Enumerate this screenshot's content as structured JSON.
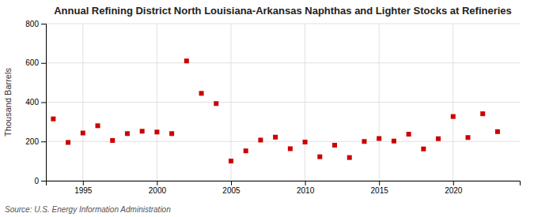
{
  "chart_data": {
    "type": "scatter",
    "title": "Annual Refining District North Louisiana-Arkansas Naphthas and Lighter Stocks at Refineries",
    "y_label": "Thousand Barrels",
    "annotations": [
      "Source: U.S. Energy Information Administration"
    ],
    "x": [
      1993,
      1994,
      1995,
      1996,
      1997,
      1998,
      1999,
      2000,
      2001,
      2002,
      2003,
      2004,
      2005,
      2006,
      2007,
      2008,
      2009,
      2010,
      2011,
      2012,
      2013,
      2014,
      2015,
      2016,
      2017,
      2018,
      2019,
      2020,
      2021,
      2022,
      2023
    ],
    "values": [
      315,
      195,
      243,
      280,
      205,
      240,
      252,
      248,
      240,
      610,
      445,
      393,
      100,
      152,
      207,
      222,
      163,
      197,
      122,
      181,
      118,
      200,
      215,
      202,
      237,
      162,
      214,
      327,
      220,
      341,
      250
    ],
    "color": "#cc0000",
    "marker": "square",
    "xlim": [
      1992.5,
      2024.5
    ],
    "ylim": [
      0,
      800
    ],
    "xticks": [
      1995,
      2000,
      2005,
      2010,
      2015,
      2020
    ],
    "yticks": [
      0,
      200,
      400,
      600,
      800
    ],
    "grid": true
  }
}
